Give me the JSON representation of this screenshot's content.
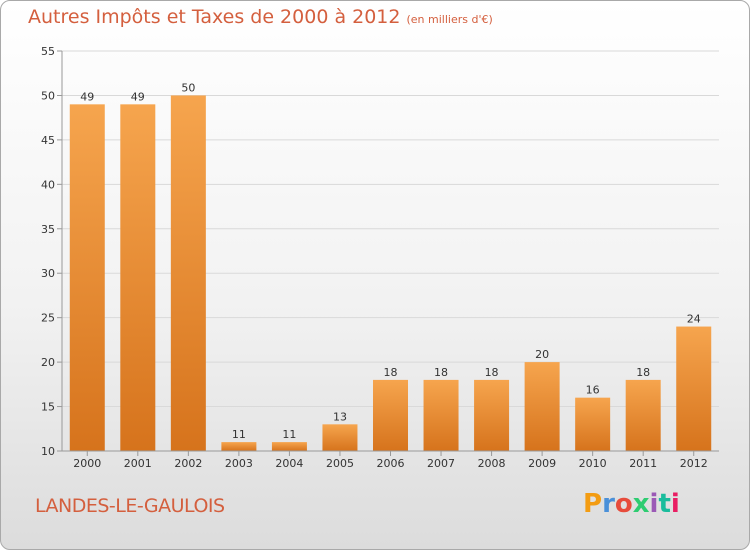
{
  "title": "Autres Impôts et Taxes de 2000 à 2012",
  "subtitle": "(en milliers d'€)",
  "commune": "LANDES-LE-GAULOIS",
  "logo": {
    "text": "Proxiti",
    "colors": [
      "#f39c12",
      "#4a90d9",
      "#e74c3c",
      "#2ecc71",
      "#9b59b6",
      "#1abc9c",
      "#e91e63"
    ]
  },
  "colors": {
    "title": "#d45f3e",
    "bar_light": "#f6a54e",
    "bar_dark": "#d6731c",
    "grid": "#d9d9d9",
    "axis": "#999999"
  },
  "chart_data": {
    "type": "bar",
    "categories": [
      "2000",
      "2001",
      "2002",
      "2003",
      "2004",
      "2005",
      "2006",
      "2007",
      "2008",
      "2009",
      "2010",
      "2011",
      "2012"
    ],
    "values": [
      49,
      49,
      50,
      11,
      11,
      13,
      18,
      18,
      18,
      20,
      16,
      18,
      24
    ],
    "data_labels": [
      "49",
      "49",
      "50",
      "11",
      "11",
      "13",
      "18",
      "18",
      "18",
      "20",
      "16",
      "18",
      "24"
    ],
    "yticks": [
      "10",
      "15",
      "20",
      "25",
      "30",
      "35",
      "40",
      "45",
      "50",
      "55"
    ],
    "ylim": [
      10,
      55
    ],
    "grid": true
  }
}
